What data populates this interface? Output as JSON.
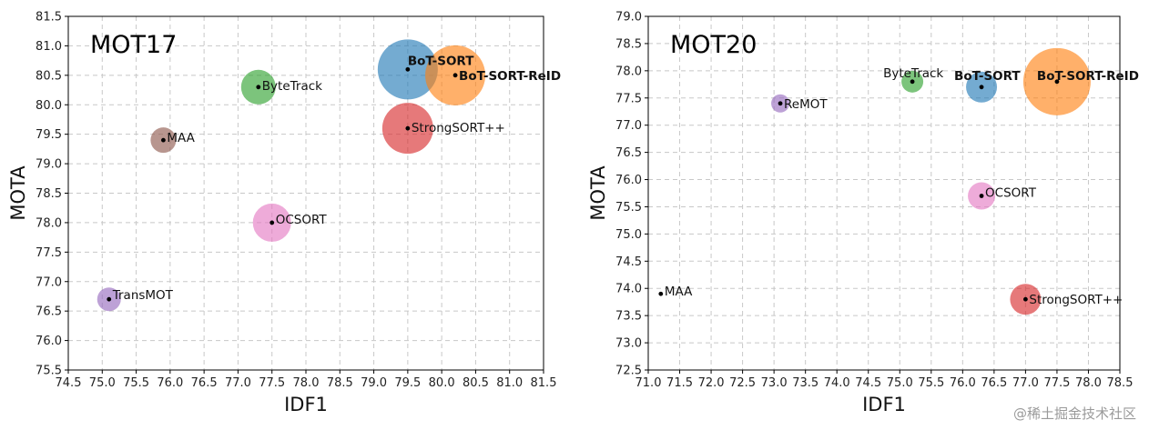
{
  "watermark": "@稀土掘金技术社区",
  "chart_data": [
    {
      "type": "scatter",
      "title": "MOT17",
      "xlabel": "IDF1",
      "ylabel": "MOTA",
      "xlim": [
        74.5,
        81.5
      ],
      "ylim": [
        75.5,
        81.5
      ],
      "xstep": 0.5,
      "ystep": 0.5,
      "grid": true,
      "points": [
        {
          "label": "BoT-SORT",
          "x": 79.5,
          "y": 80.6,
          "size": 33,
          "color": "#1f77b4",
          "bold": true
        },
        {
          "label": "BoT-SORT-ReID",
          "x": 80.2,
          "y": 80.5,
          "size": 33,
          "color": "#ff7f0e",
          "bold": true
        },
        {
          "label": "ByteTrack",
          "x": 77.3,
          "y": 80.3,
          "size": 19,
          "color": "#2ca02c",
          "bold": false
        },
        {
          "label": "StrongSORT++",
          "x": 79.5,
          "y": 79.6,
          "size": 28,
          "color": "#d62728",
          "bold": false
        },
        {
          "label": "MAA",
          "x": 75.9,
          "y": 79.4,
          "size": 14,
          "color": "#8c564b",
          "bold": false
        },
        {
          "label": "OCSORT",
          "x": 77.5,
          "y": 78.0,
          "size": 21,
          "color": "#e377c2",
          "bold": false
        },
        {
          "label": "TransMOT",
          "x": 75.1,
          "y": 76.7,
          "size": 13,
          "color": "#9467bd",
          "bold": false
        }
      ]
    },
    {
      "type": "scatter",
      "title": "MOT20",
      "xlabel": "IDF1",
      "ylabel": "MOTA",
      "xlim": [
        71.0,
        78.5
      ],
      "ylim": [
        72.5,
        79.0
      ],
      "xstep": 0.5,
      "ystep": 0.5,
      "grid": true,
      "points": [
        {
          "label": "BoT-SORT-ReID",
          "x": 77.5,
          "y": 77.8,
          "size": 37,
          "color": "#ff7f0e",
          "bold": true
        },
        {
          "label": "BoT-SORT",
          "x": 76.3,
          "y": 77.7,
          "size": 17,
          "color": "#1f77b4",
          "bold": true
        },
        {
          "label": "ByteTrack",
          "x": 75.2,
          "y": 77.8,
          "size": 12,
          "color": "#2ca02c",
          "bold": false
        },
        {
          "label": "ReMOT",
          "x": 73.1,
          "y": 77.4,
          "size": 10,
          "color": "#9467bd",
          "bold": false
        },
        {
          "label": "OCSORT",
          "x": 76.3,
          "y": 75.7,
          "size": 15,
          "color": "#e377c2",
          "bold": false
        },
        {
          "label": "StrongSORT++",
          "x": 77.0,
          "y": 73.8,
          "size": 17,
          "color": "#d62728",
          "bold": false
        },
        {
          "label": "MAA",
          "x": 71.2,
          "y": 73.9,
          "size": 0,
          "color": "#7f7f7f",
          "bold": false
        }
      ]
    }
  ]
}
